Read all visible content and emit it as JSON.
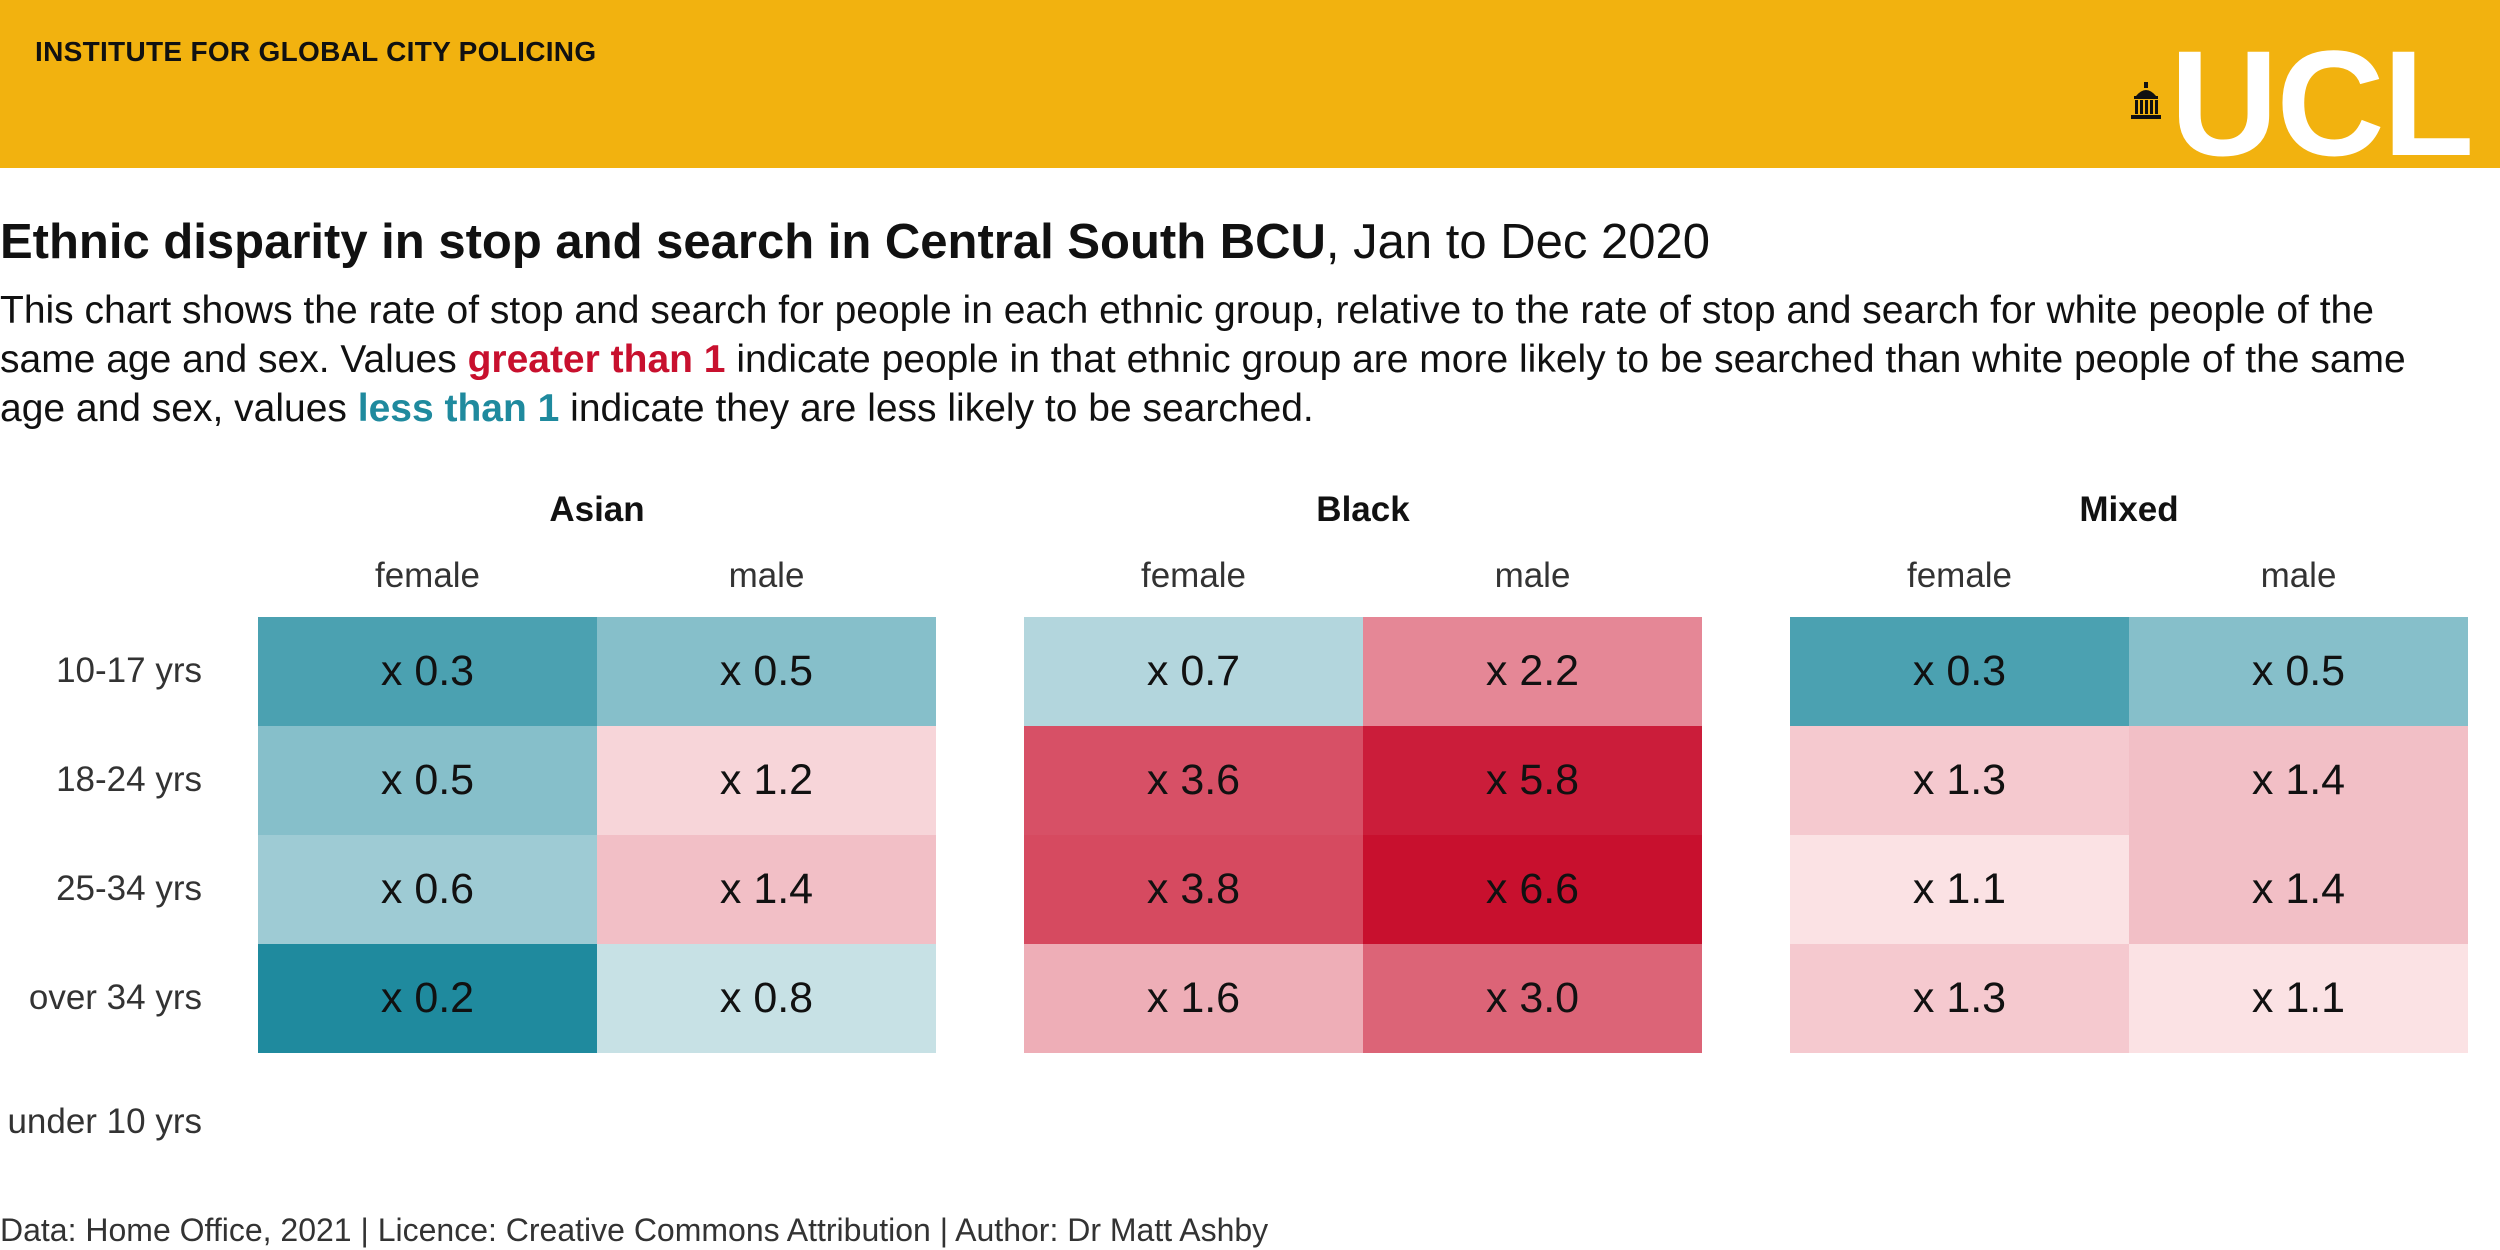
{
  "banner": {
    "title": "INSTITUTE FOR GLOBAL CITY POLICING",
    "logo_text": "UCL",
    "background": "#F2B20F"
  },
  "title": {
    "bold": "Ethnic disparity in stop and search in Central South BCU",
    "rest": ", Jan to Dec 2020"
  },
  "subtitle": {
    "part1": "This chart shows the rate of stop and search for people in each ethnic group, relative to the rate of stop and search for white people of the same age and sex. Values ",
    "greater": "greater than 1",
    "part2": " indicate people in that ethnic group are more likely to be searched than white people of the same age and sex, values ",
    "less": "less than 1",
    "part3": " indicate they are less likely to be searched."
  },
  "caption": "Data: Home Office, 2021 | Licence: Creative Commons Attribution | Author: Dr Matt Ashby",
  "colors": {
    "more_likely": "#C8102E",
    "less_likely": "#1F8A9E"
  },
  "chart_data": {
    "type": "heatmap",
    "row_labels": [
      "under 10 yrs",
      "10-17 yrs",
      "18-24 yrs",
      "25-34 yrs",
      "over 34 yrs"
    ],
    "groups": [
      {
        "name": "Asian",
        "columns": [
          "female",
          "male"
        ],
        "values": [
          [
            null,
            null
          ],
          [
            0.3,
            0.5
          ],
          [
            0.5,
            1.2
          ],
          [
            0.6,
            1.4
          ],
          [
            0.2,
            0.8
          ]
        ],
        "labels": [
          [
            "",
            ""
          ],
          [
            "x 0.3",
            "x 0.5"
          ],
          [
            "x 0.5",
            "x 1.2"
          ],
          [
            "x 0.6",
            "x 1.4"
          ],
          [
            "x 0.2",
            "x 0.8"
          ]
        ]
      },
      {
        "name": "Black",
        "columns": [
          "female",
          "male"
        ],
        "values": [
          [
            null,
            null
          ],
          [
            0.7,
            2.2
          ],
          [
            3.6,
            5.8
          ],
          [
            3.8,
            6.6
          ],
          [
            1.6,
            3.0
          ]
        ],
        "labels": [
          [
            "",
            ""
          ],
          [
            "x 0.7",
            "x 2.2"
          ],
          [
            "x 3.6",
            "x 5.8"
          ],
          [
            "x 3.8",
            "x 6.6"
          ],
          [
            "x 1.6",
            "x 3.0"
          ]
        ]
      },
      {
        "name": "Mixed",
        "columns": [
          "female",
          "male"
        ],
        "values": [
          [
            null,
            null
          ],
          [
            0.3,
            0.5
          ],
          [
            1.3,
            1.4
          ],
          [
            1.1,
            1.4
          ],
          [
            1.3,
            1.1
          ]
        ],
        "labels": [
          [
            "",
            ""
          ],
          [
            "x 0.3",
            "x 0.5"
          ],
          [
            "x 1.3",
            "x 1.4"
          ],
          [
            "x 1.1",
            "x 1.4"
          ],
          [
            "x 1.3",
            "x 1.1"
          ]
        ]
      }
    ]
  }
}
